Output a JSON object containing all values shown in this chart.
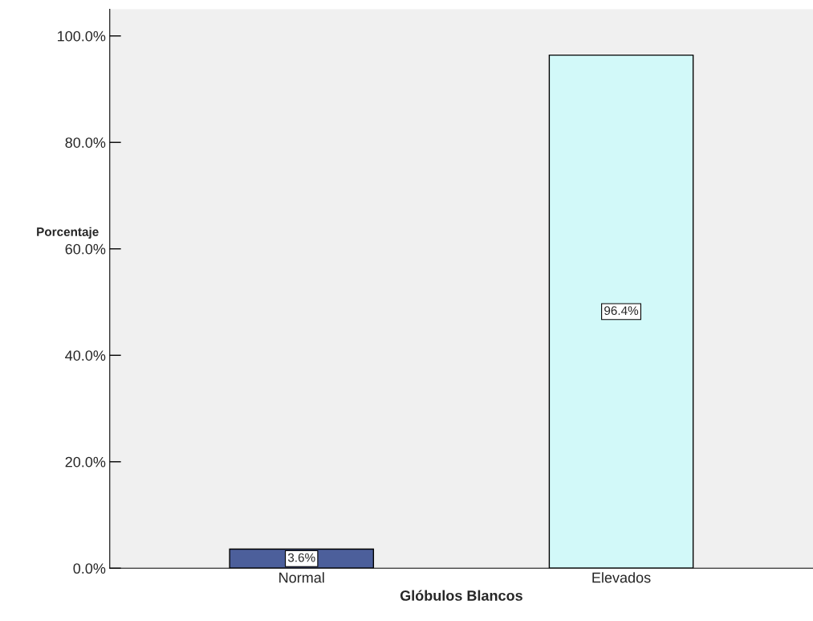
{
  "chart_data": {
    "type": "bar",
    "xlabel": "Glóbulos Blancos",
    "ylabel": "Porcentaje",
    "categories": [
      "Normal",
      "Elevados"
    ],
    "values": [
      3.6,
      96.4
    ],
    "colors": [
      "#3f58a8",
      "#ccffff"
    ],
    "value_labels": [
      "3.6%",
      "96.4%"
    ],
    "ylim": [
      0,
      105
    ],
    "yticks": [
      {
        "value": 0,
        "label": "0.0%"
      },
      {
        "value": 20,
        "label": "20.0%"
      },
      {
        "value": 40,
        "label": "40.0%"
      },
      {
        "value": 60,
        "label": "60.0%"
      },
      {
        "value": 80,
        "label": "80.0%"
      },
      {
        "value": 100,
        "label": "100.0%"
      }
    ],
    "grid": false,
    "legend": false
  }
}
